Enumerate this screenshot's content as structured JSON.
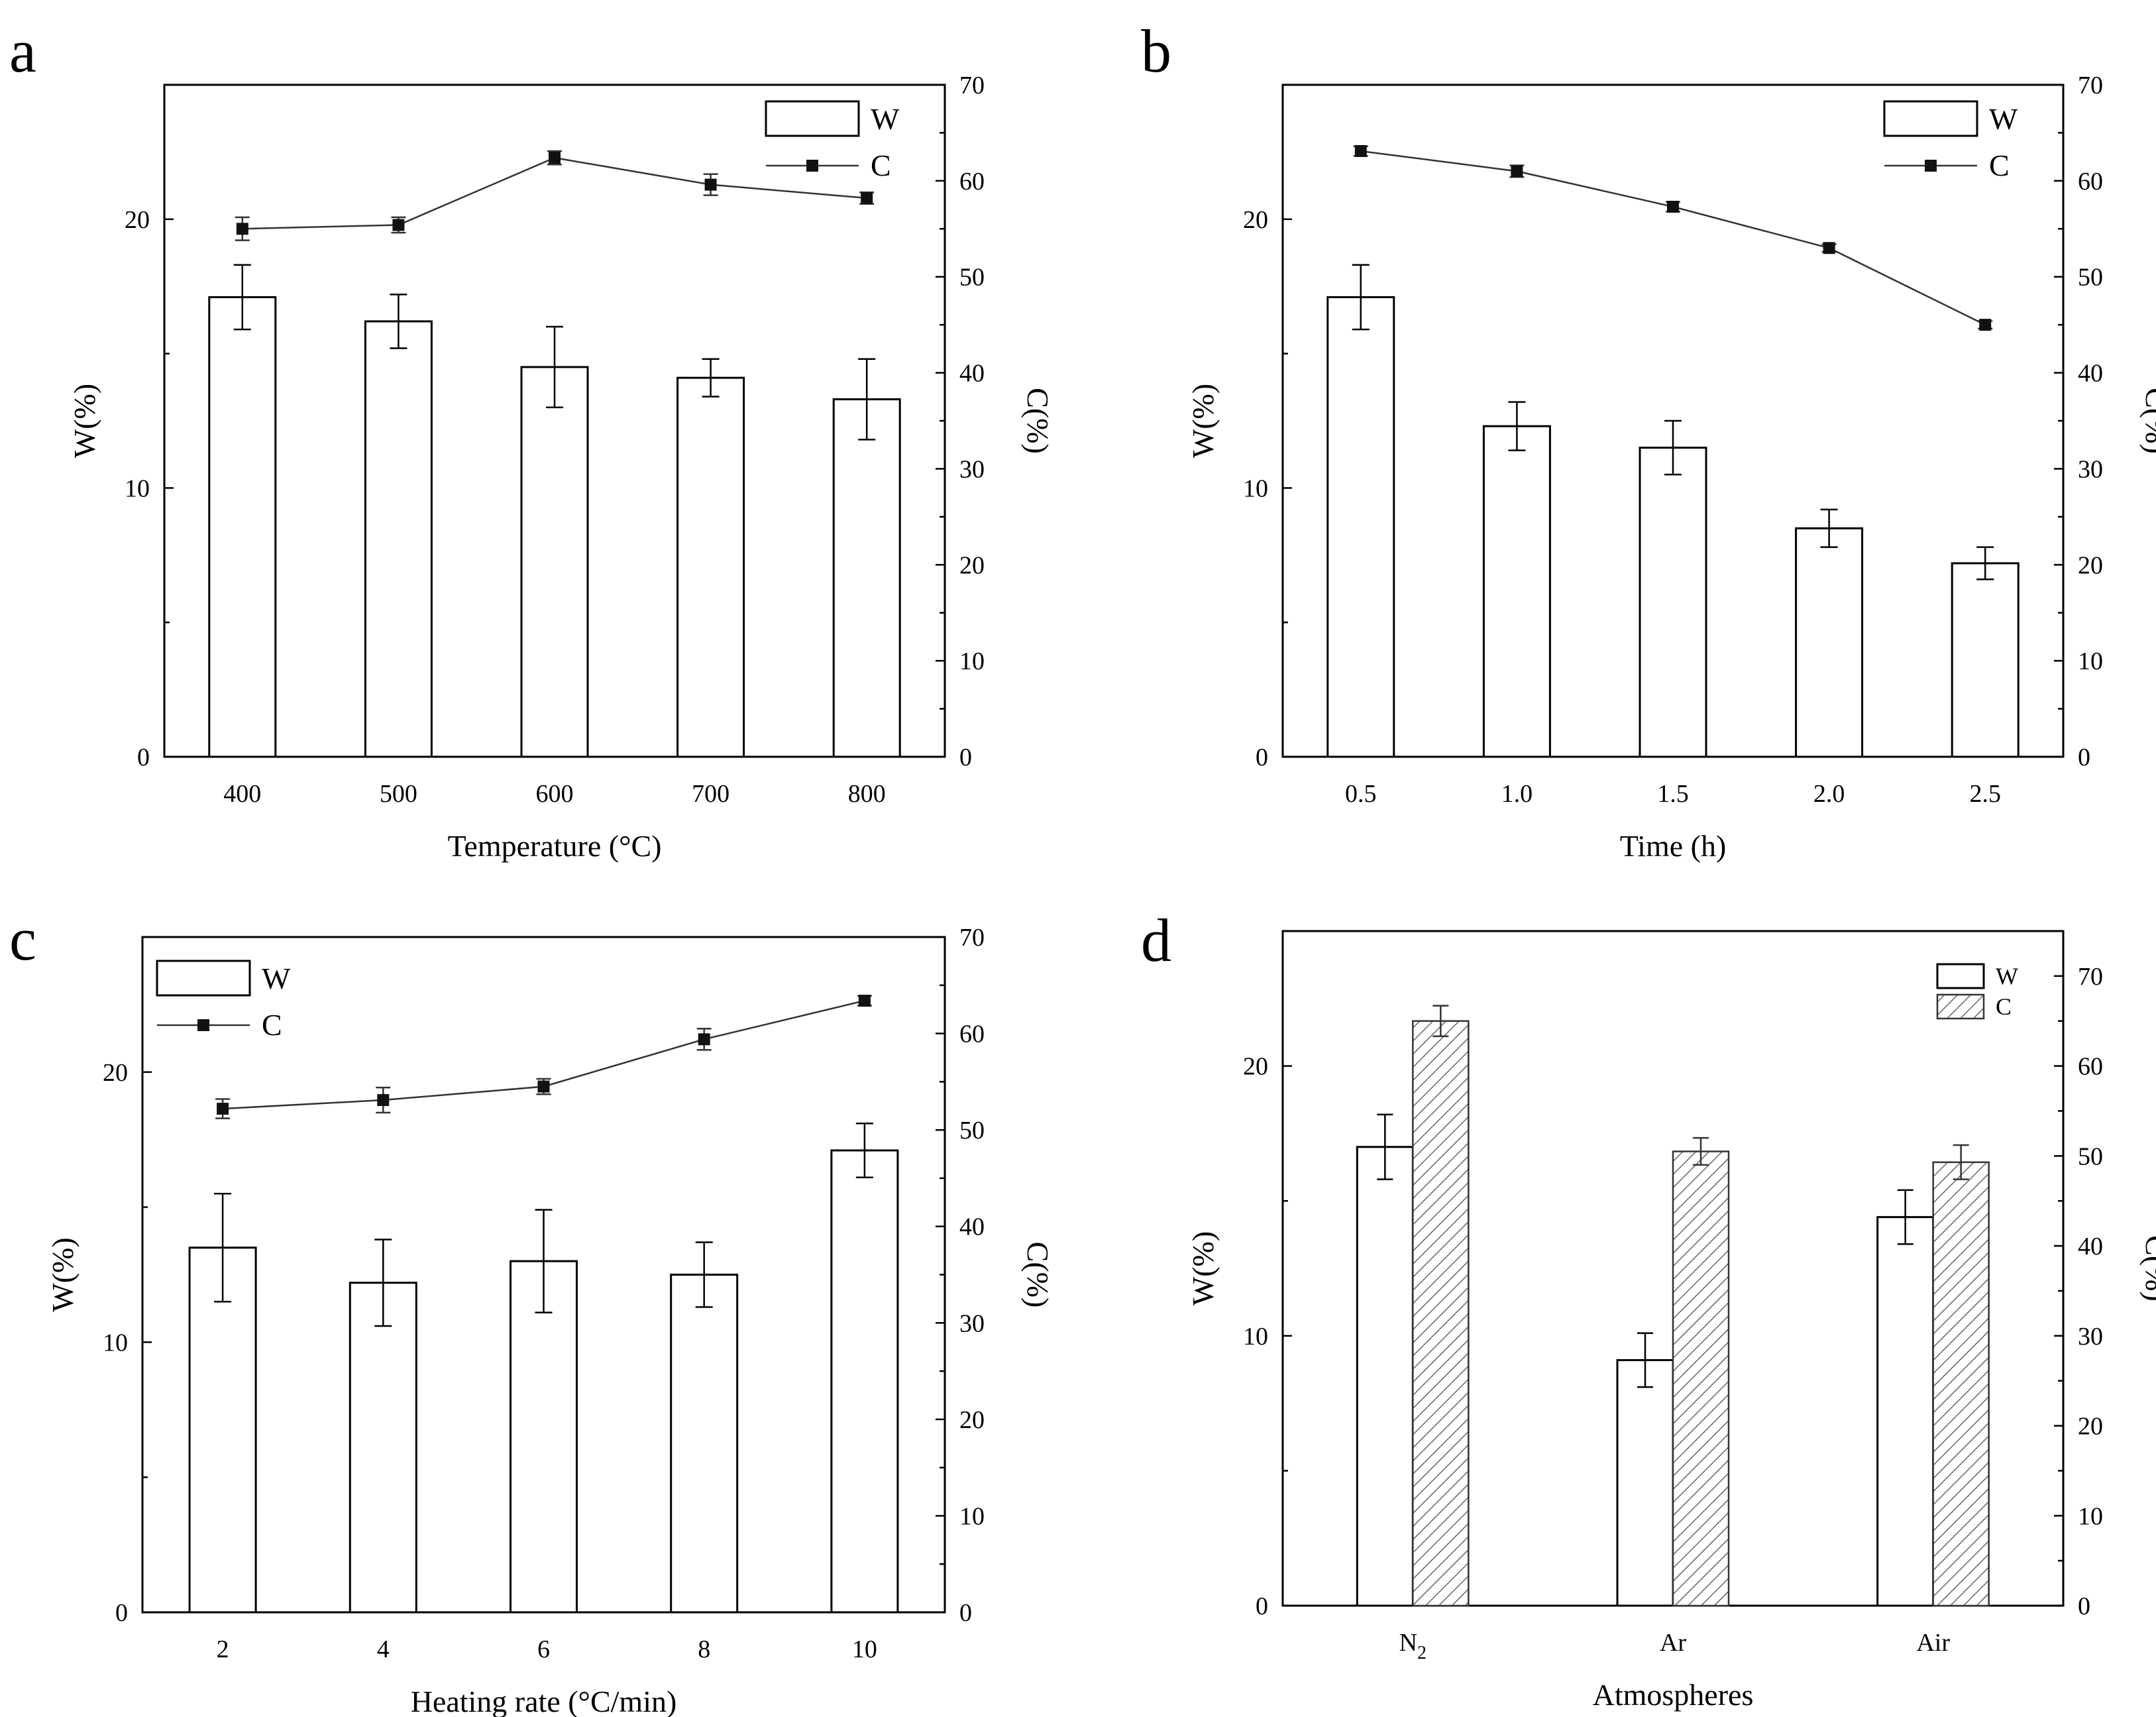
{
  "chart_data": [
    {
      "panel": "a",
      "type": "bar+line",
      "categories": [
        "400",
        "500",
        "600",
        "700",
        "800"
      ],
      "xlabel": "Temperature (°C)",
      "ylabel": "W(%)",
      "y2label": "C(%)",
      "ylim": [
        0,
        25
      ],
      "yticks": [
        0,
        10,
        20
      ],
      "y2lim": [
        0,
        70
      ],
      "y2ticks": [
        0,
        10,
        20,
        30,
        40,
        50,
        60,
        70
      ],
      "legend_position": "top-right",
      "series": [
        {
          "name": "W",
          "type": "bar",
          "axis": "left",
          "values": [
            17.1,
            16.2,
            14.5,
            14.1,
            13.3
          ],
          "errors": [
            1.2,
            1.0,
            1.5,
            0.7,
            1.5
          ]
        },
        {
          "name": "C",
          "type": "line",
          "axis": "right",
          "values": [
            55.0,
            55.4,
            62.4,
            59.6,
            58.2
          ],
          "errors": [
            1.2,
            0.8,
            0.7,
            1.1,
            0.6
          ]
        }
      ]
    },
    {
      "panel": "b",
      "type": "bar+line",
      "categories": [
        "0.5",
        "1.0",
        "1.5",
        "2.0",
        "2.5"
      ],
      "xlabel": "Time (h)",
      "ylabel": "W(%)",
      "y2label": "C(%)",
      "ylim": [
        0,
        25
      ],
      "yticks": [
        0,
        10,
        20
      ],
      "y2lim": [
        0,
        70
      ],
      "y2ticks": [
        0,
        10,
        20,
        30,
        40,
        50,
        60,
        70
      ],
      "legend_position": "top-right",
      "series": [
        {
          "name": "W",
          "type": "bar",
          "axis": "left",
          "values": [
            17.1,
            12.3,
            11.5,
            8.5,
            7.2
          ],
          "errors": [
            1.2,
            0.9,
            1.0,
            0.7,
            0.6
          ]
        },
        {
          "name": "C",
          "type": "line",
          "axis": "right",
          "values": [
            63.1,
            61.0,
            57.3,
            53.0,
            45.0
          ],
          "errors": [
            0.5,
            0.6,
            0.5,
            0.4,
            0.4
          ]
        }
      ]
    },
    {
      "panel": "c",
      "type": "bar+line",
      "categories": [
        "2",
        "4",
        "6",
        "8",
        "10"
      ],
      "xlabel": "Heating rate (°C/min)",
      "ylabel": "W(%)",
      "y2label": "C(%)",
      "ylim": [
        0,
        25
      ],
      "yticks": [
        0,
        10,
        20
      ],
      "y2lim": [
        0,
        70
      ],
      "y2ticks": [
        0,
        10,
        20,
        30,
        40,
        50,
        60,
        70
      ],
      "legend_position": "top-left",
      "series": [
        {
          "name": "W",
          "type": "bar",
          "axis": "left",
          "values": [
            13.5,
            12.2,
            13.0,
            12.5,
            17.1
          ],
          "errors": [
            2.0,
            1.6,
            1.9,
            1.2,
            1.0
          ]
        },
        {
          "name": "C",
          "type": "line",
          "axis": "right",
          "values": [
            52.2,
            53.1,
            54.5,
            59.4,
            63.4
          ],
          "errors": [
            1.0,
            1.3,
            0.8,
            1.1,
            0.5
          ]
        }
      ]
    },
    {
      "panel": "d",
      "type": "grouped-bar",
      "categories": [
        "N2",
        "Ar",
        "Air"
      ],
      "categories_display": [
        {
          "base": "N",
          "sub": "2"
        },
        {
          "base": "Ar",
          "sub": ""
        },
        {
          "base": "Air",
          "sub": ""
        }
      ],
      "xlabel": "Atmospheres",
      "ylabel": "W(%)",
      "y2label": "C(%)",
      "ylim": [
        0,
        25
      ],
      "yticks": [
        0,
        10,
        20
      ],
      "y2lim": [
        0,
        75
      ],
      "y2ticks": [
        0,
        10,
        20,
        30,
        40,
        50,
        60,
        70
      ],
      "legend_position": "top-right",
      "series": [
        {
          "name": "W",
          "type": "bar",
          "axis": "left",
          "values": [
            17.0,
            9.1,
            14.4
          ],
          "errors": [
            1.2,
            1.0,
            1.0
          ]
        },
        {
          "name": "C",
          "type": "bar-hatched",
          "axis": "right",
          "values": [
            65.0,
            50.5,
            49.3
          ],
          "errors": [
            1.7,
            1.5,
            1.9
          ]
        }
      ]
    }
  ]
}
